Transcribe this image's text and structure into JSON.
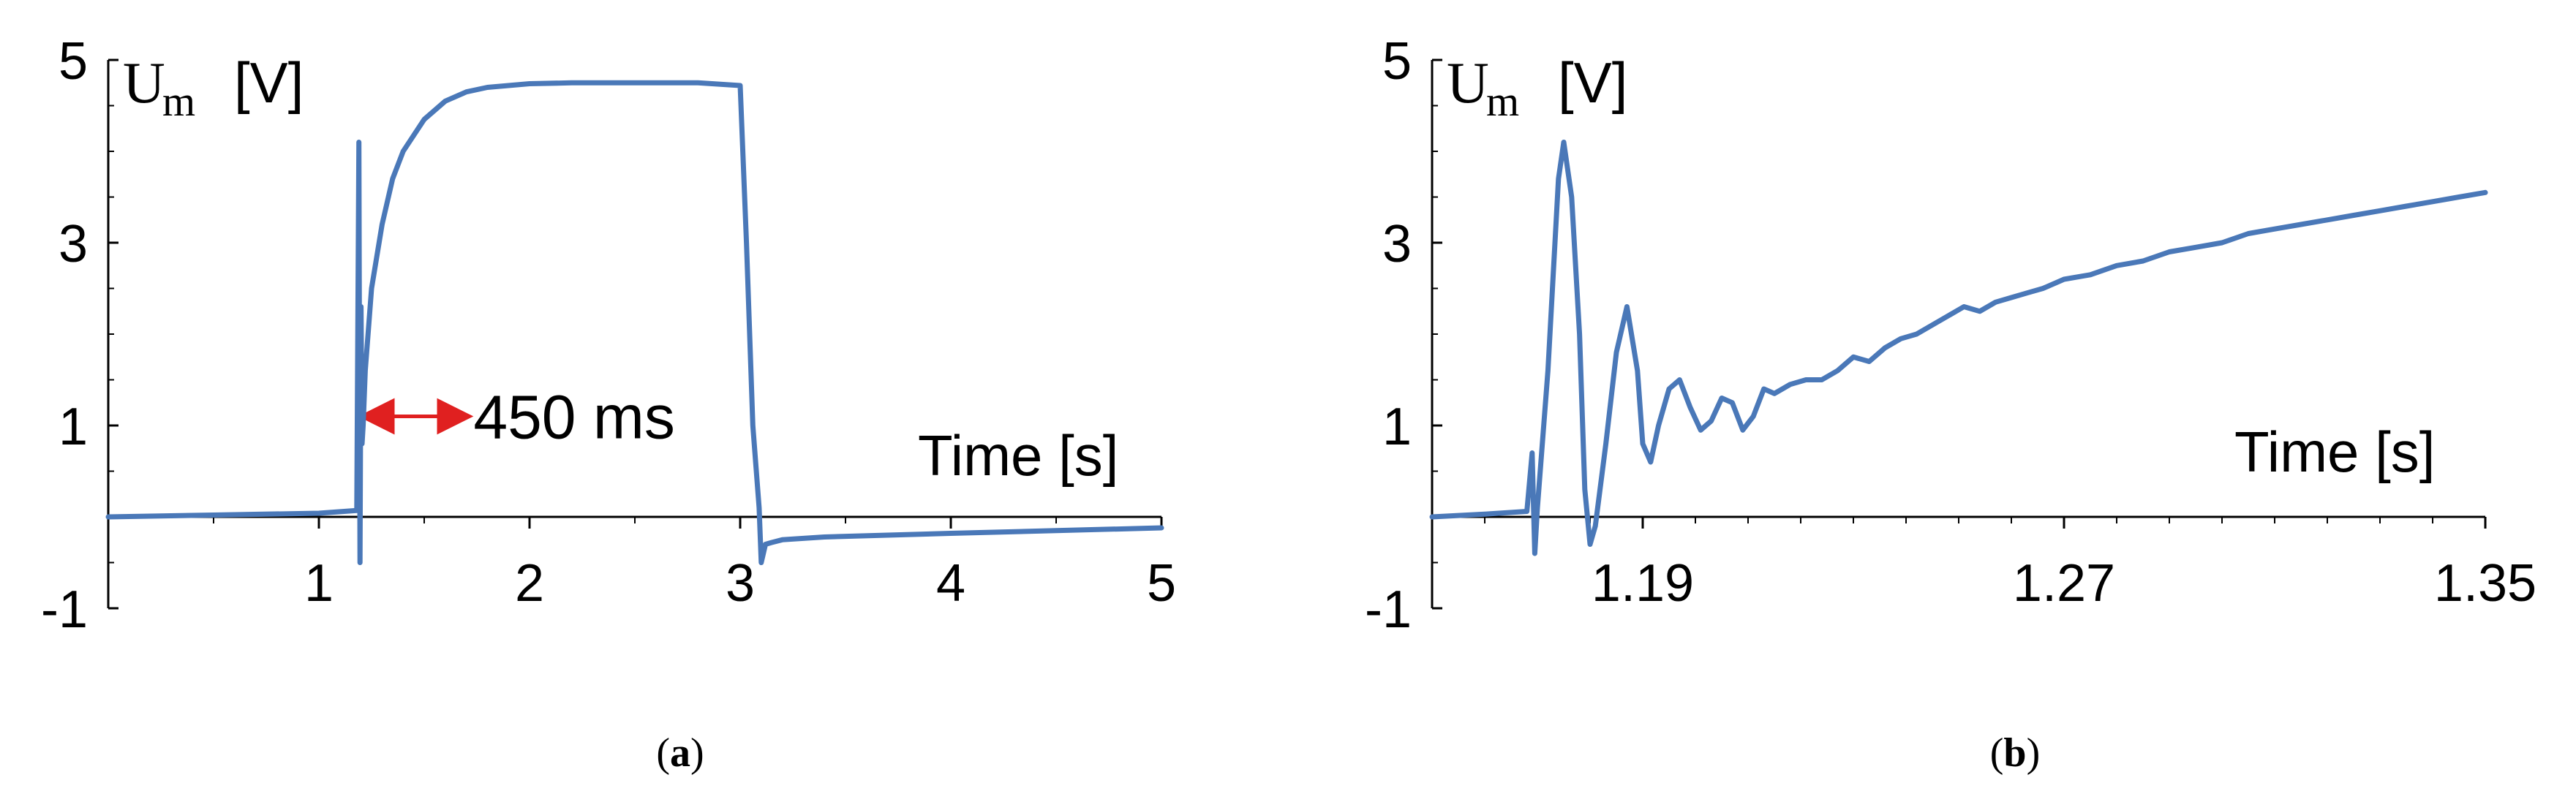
{
  "panels": [
    {
      "label_open": "(",
      "label_letter": "a",
      "label_close": ")"
    },
    {
      "label_open": "(",
      "label_letter": "b",
      "label_close": ")"
    }
  ],
  "chart_data": [
    {
      "type": "line",
      "ylabel_main": "U",
      "ylabel_sub": "m",
      "ylabel_unit": "[V]",
      "xlabel": "Time [s]",
      "xlim": [
        0,
        5
      ],
      "ylim": [
        -1,
        5
      ],
      "x_ticks": [
        "1",
        "2",
        "3",
        "4",
        "5"
      ],
      "y_ticks": [
        "5",
        "3",
        "1",
        "-1"
      ],
      "y_tick_values": [
        5,
        3,
        1,
        -1
      ],
      "x_tick_values": [
        1,
        2,
        3,
        4,
        5
      ],
      "annotation": {
        "text": "450 ms",
        "x_start": 1.2,
        "x_end": 1.72,
        "y": 1.1,
        "color": "#e02020"
      },
      "series": [
        {
          "color": "#4a78b8",
          "x": [
            0,
            0.5,
            1.0,
            1.18,
            1.19,
            1.195,
            1.2,
            1.205,
            1.21,
            1.22,
            1.25,
            1.3,
            1.35,
            1.4,
            1.5,
            1.6,
            1.7,
            1.8,
            2.0,
            2.2,
            2.5,
            2.8,
            3.0,
            3.03,
            3.06,
            3.09,
            3.1,
            3.12,
            3.15,
            3.2,
            3.4,
            3.7,
            4.0,
            4.5,
            5.0
          ],
          "y": [
            0.0,
            0.02,
            0.04,
            0.07,
            4.1,
            -0.5,
            2.3,
            0.8,
            1.0,
            1.6,
            2.5,
            3.2,
            3.7,
            4.0,
            4.35,
            4.55,
            4.65,
            4.7,
            4.74,
            4.75,
            4.75,
            4.75,
            4.72,
            3.0,
            1.0,
            0.1,
            -0.5,
            -0.3,
            -0.28,
            -0.25,
            -0.22,
            -0.2,
            -0.18,
            -0.15,
            -0.12
          ]
        }
      ]
    },
    {
      "type": "line",
      "ylabel_main": "U",
      "ylabel_sub": "m",
      "ylabel_unit": "[V]",
      "xlabel": "Time [s]",
      "xlim": [
        1.15,
        1.35
      ],
      "ylim": [
        -1,
        5
      ],
      "x_ticks": [
        "1.19",
        "1.27",
        "1.35"
      ],
      "x_tick_values": [
        1.19,
        1.27,
        1.35
      ],
      "y_ticks": [
        "5",
        "3",
        "1",
        "-1"
      ],
      "y_tick_values": [
        5,
        3,
        1,
        -1
      ],
      "x_minor_step": 0.01,
      "series": [
        {
          "color": "#4a78b8",
          "x": [
            1.15,
            1.16,
            1.168,
            1.169,
            1.1695,
            1.17,
            1.172,
            1.174,
            1.175,
            1.1765,
            1.178,
            1.179,
            1.18,
            1.181,
            1.183,
            1.185,
            1.187,
            1.189,
            1.19,
            1.1915,
            1.193,
            1.195,
            1.197,
            1.199,
            1.201,
            1.203,
            1.205,
            1.207,
            1.209,
            1.211,
            1.213,
            1.215,
            1.218,
            1.221,
            1.224,
            1.227,
            1.23,
            1.233,
            1.236,
            1.239,
            1.242,
            1.245,
            1.248,
            1.251,
            1.254,
            1.257,
            1.26,
            1.263,
            1.266,
            1.27,
            1.275,
            1.28,
            1.285,
            1.29,
            1.295,
            1.3,
            1.305,
            1.31,
            1.315,
            1.32,
            1.325,
            1.33,
            1.335,
            1.34,
            1.345,
            1.35
          ],
          "y": [
            0.0,
            0.03,
            0.06,
            0.7,
            -0.4,
            0.1,
            1.6,
            3.7,
            4.1,
            3.5,
            2.0,
            0.3,
            -0.3,
            -0.1,
            0.8,
            1.8,
            2.3,
            1.6,
            0.8,
            0.6,
            1.0,
            1.4,
            1.5,
            1.2,
            0.95,
            1.05,
            1.3,
            1.25,
            0.95,
            1.1,
            1.4,
            1.35,
            1.45,
            1.5,
            1.5,
            1.6,
            1.75,
            1.7,
            1.85,
            1.95,
            2.0,
            2.1,
            2.2,
            2.3,
            2.25,
            2.35,
            2.4,
            2.45,
            2.5,
            2.6,
            2.65,
            2.75,
            2.8,
            2.9,
            2.95,
            3.0,
            3.1,
            3.15,
            3.2,
            3.25,
            3.3,
            3.35,
            3.4,
            3.45,
            3.5,
            3.55
          ]
        }
      ]
    }
  ]
}
